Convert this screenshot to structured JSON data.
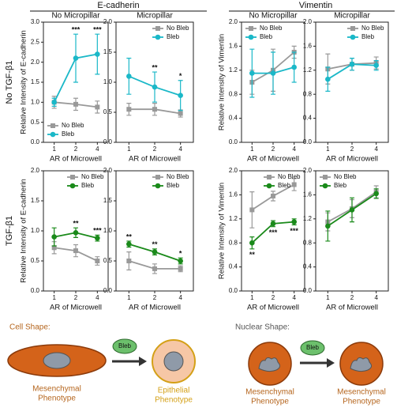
{
  "figure": {
    "groups": [
      "E-cadherin",
      "Vimentin"
    ],
    "rows": [
      "No TGF-β1",
      "TGF-β1"
    ]
  },
  "diagram": {
    "cell_title": "Cell Shape:",
    "nuclear_title": "Nuclear Shape:",
    "drug": "Bleb",
    "cell_before": [
      "Mesenchymal",
      "Phenotype"
    ],
    "cell_after": [
      "Epithelial",
      "Phenotype"
    ],
    "nuclear_before": [
      "Mesenchymal",
      "Phenotype"
    ],
    "nuclear_after": [
      "Mesenchymal",
      "Phenotype"
    ]
  },
  "chart_data": [
    {
      "type": "line",
      "title": "No Micropillar",
      "ylabel": "Relative Intensity of E-cadherin",
      "xlabel": "AR of Microwell",
      "categories": [
        "1",
        "2",
        "4"
      ],
      "legend": "lower left",
      "ylim": [
        0,
        3
      ],
      "yticks": [
        {
          "value": 0,
          "label": "0.0"
        },
        0.5,
        {
          "value": 1,
          "label": "1.0"
        },
        1.5,
        {
          "value": 2,
          "label": "2.0"
        },
        2.5,
        {
          "value": 3,
          "label": "3.0"
        }
      ],
      "series": [
        {
          "name": "No Bleb",
          "color": "#999999",
          "marker": "square",
          "values": [
            1.0,
            0.95,
            0.88
          ],
          "errors": [
            0.15,
            0.15,
            0.15
          ]
        },
        {
          "name": "Bleb",
          "color": "#1ab8c8",
          "marker": "circle",
          "values": [
            1.0,
            2.1,
            2.2
          ],
          "errors": [
            0.1,
            0.6,
            0.5
          ],
          "significance": [
            null,
            "***",
            "***"
          ]
        }
      ]
    },
    {
      "type": "line",
      "title": "Micropillar",
      "xlabel": "AR of Microwell",
      "categories": [
        "1",
        "2",
        "4"
      ],
      "legend": "upper right",
      "ylim": [
        0,
        2
      ],
      "yticks": [
        {
          "value": 0,
          "label": "0.0"
        },
        0.5,
        {
          "value": 1,
          "label": "1.0"
        },
        1.5,
        {
          "value": 2,
          "label": "2.0"
        }
      ],
      "series": [
        {
          "name": "No Bleb",
          "color": "#999999",
          "marker": "square",
          "values": [
            0.55,
            0.55,
            0.48
          ],
          "errors": [
            0.1,
            0.1,
            0.06
          ]
        },
        {
          "name": "Bleb",
          "color": "#1ab8c8",
          "marker": "circle",
          "values": [
            1.1,
            0.92,
            0.78
          ],
          "errors": [
            0.3,
            0.25,
            0.25
          ],
          "significance": [
            null,
            "**",
            "*"
          ]
        }
      ]
    },
    {
      "type": "line",
      "title": "No Micropillar",
      "ylabel": "Relative Intensity of Vimentin",
      "xlabel": "AR of Microwell",
      "categories": [
        "1",
        "2",
        "4"
      ],
      "legend": "upper left",
      "ylim": [
        0,
        2
      ],
      "yticks": [
        {
          "value": 0,
          "label": "0.0"
        },
        0.4,
        0.8,
        1.2,
        1.6,
        {
          "value": 2,
          "label": "2.0"
        }
      ],
      "series": [
        {
          "name": "No Bleb",
          "color": "#999999",
          "marker": "square",
          "values": [
            1.0,
            1.2,
            1.5
          ],
          "errors": [
            0.2,
            0.35,
            0.1
          ]
        },
        {
          "name": "Bleb",
          "color": "#1ab8c8",
          "marker": "circle",
          "values": [
            1.15,
            1.15,
            1.25
          ],
          "errors": [
            0.4,
            0.35,
            0.25
          ]
        }
      ]
    },
    {
      "type": "line",
      "title": "Micropillar",
      "xlabel": "AR of Microwell",
      "categories": [
        "1",
        "2",
        "4"
      ],
      "legend": "upper right",
      "ylim": [
        0,
        2
      ],
      "yticks": [
        {
          "value": 0,
          "label": "0.0"
        },
        0.4,
        0.8,
        1.2,
        1.6,
        {
          "value": 2,
          "label": "2.0"
        }
      ],
      "series": [
        {
          "name": "No Bleb",
          "color": "#999999",
          "marker": "square",
          "values": [
            1.22,
            1.3,
            1.32
          ],
          "errors": [
            0.25,
            0.1,
            0.1
          ]
        },
        {
          "name": "Bleb",
          "color": "#1ab8c8",
          "marker": "circle",
          "values": [
            1.05,
            1.3,
            1.28
          ],
          "errors": [
            0.2,
            0.1,
            0.08
          ]
        }
      ]
    },
    {
      "type": "line",
      "ylabel": "Relative Intensity of E-cadherin",
      "xlabel": "AR of Microwell",
      "categories": [
        "1",
        "2",
        "4"
      ],
      "legend": "upper right",
      "ylim": [
        0,
        2
      ],
      "yticks": [
        {
          "value": 0,
          "label": "0.0"
        },
        0.5,
        {
          "value": 1,
          "label": "1.0"
        },
        1.5,
        {
          "value": 2,
          "label": "2.0"
        }
      ],
      "series": [
        {
          "name": "No Bleb",
          "color": "#999999",
          "marker": "square",
          "values": [
            0.72,
            0.67,
            0.5
          ],
          "errors": [
            0.1,
            0.1,
            0.07
          ]
        },
        {
          "name": "Bleb",
          "color": "#1a8a1a",
          "marker": "circle",
          "values": [
            0.9,
            0.97,
            0.88
          ],
          "errors": [
            0.15,
            0.08,
            0.05
          ],
          "significance": [
            null,
            "**",
            "***"
          ]
        }
      ]
    },
    {
      "type": "line",
      "xlabel": "AR of Microwell",
      "categories": [
        "1",
        "2",
        "4"
      ],
      "legend": "upper right",
      "ylim": [
        0,
        2
      ],
      "yticks": [
        {
          "value": 0,
          "label": "0.0"
        },
        0.5,
        {
          "value": 1,
          "label": "1.0"
        },
        1.5,
        {
          "value": 2,
          "label": "2.0"
        }
      ],
      "series": [
        {
          "name": "No Bleb",
          "color": "#999999",
          "marker": "square",
          "values": [
            0.5,
            0.37,
            0.37
          ],
          "errors": [
            0.15,
            0.08,
            0.05
          ]
        },
        {
          "name": "Bleb",
          "color": "#1a8a1a",
          "marker": "circle",
          "values": [
            0.78,
            0.65,
            0.5
          ],
          "errors": [
            0.05,
            0.05,
            0.05
          ],
          "significance": [
            "**",
            "**",
            "*"
          ]
        }
      ]
    },
    {
      "type": "line",
      "ylabel": "Relative Intensity of Vimentin",
      "xlabel": "AR of Microwell",
      "categories": [
        "1",
        "2",
        "4"
      ],
      "legend": "upper right",
      "ylim": [
        0,
        2
      ],
      "yticks": [
        {
          "value": 0,
          "label": "0.0"
        },
        0.4,
        0.8,
        1.2,
        1.6,
        {
          "value": 2,
          "label": "2.0"
        }
      ],
      "series": [
        {
          "name": "No Bleb",
          "color": "#999999",
          "marker": "square",
          "values": [
            1.35,
            1.58,
            1.77
          ],
          "errors": [
            0.3,
            0.08,
            0.1
          ]
        },
        {
          "name": "Bleb",
          "color": "#1a8a1a",
          "marker": "circle",
          "values": [
            0.8,
            1.12,
            1.15
          ],
          "errors": [
            0.1,
            0.05,
            0.05
          ],
          "significance": [
            "**",
            "***",
            "***"
          ]
        }
      ]
    },
    {
      "type": "line",
      "xlabel": "AR of Microwell",
      "categories": [
        "1",
        "2",
        "4"
      ],
      "legend": "upper left",
      "ylim": [
        0,
        2
      ],
      "yticks": [
        {
          "value": 0,
          "label": "0.0"
        },
        0.4,
        0.8,
        1.2,
        1.6,
        {
          "value": 2,
          "label": "2.0"
        }
      ],
      "series": [
        {
          "name": "No Bleb",
          "color": "#999999",
          "marker": "square",
          "values": [
            1.15,
            1.37,
            1.65
          ],
          "errors": [
            0.15,
            0.15,
            0.1
          ]
        },
        {
          "name": "Bleb",
          "color": "#1a8a1a",
          "marker": "circle",
          "values": [
            1.08,
            1.35,
            1.62
          ],
          "errors": [
            0.25,
            0.2,
            0.08
          ]
        }
      ]
    }
  ]
}
